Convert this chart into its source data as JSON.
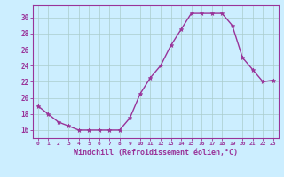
{
  "x": [
    0,
    1,
    2,
    3,
    4,
    5,
    6,
    7,
    8,
    9,
    10,
    11,
    12,
    13,
    14,
    15,
    16,
    17,
    18,
    19,
    20,
    21,
    22,
    23
  ],
  "y": [
    19.0,
    18.0,
    17.0,
    16.5,
    16.0,
    16.0,
    16.0,
    16.0,
    16.0,
    17.5,
    20.5,
    22.5,
    24.0,
    26.5,
    28.5,
    30.5,
    30.5,
    30.5,
    30.5,
    29.0,
    25.0,
    23.5,
    22.0,
    22.2
  ],
  "line_color": "#993399",
  "bg_color": "#cceeff",
  "grid_color": "#aacccc",
  "xlabel": "Windchill (Refroidissement éolien,°C)",
  "ylabel_ticks": [
    16,
    18,
    20,
    22,
    24,
    26,
    28,
    30
  ],
  "ylim": [
    15.0,
    31.5
  ],
  "xlim": [
    -0.5,
    23.5
  ],
  "tick_color": "#993399",
  "font_family": "monospace",
  "xtick_fontsize": 4.5,
  "ytick_fontsize": 5.5,
  "xlabel_fontsize": 6.0,
  "linewidth": 1.0,
  "markersize": 3.5
}
